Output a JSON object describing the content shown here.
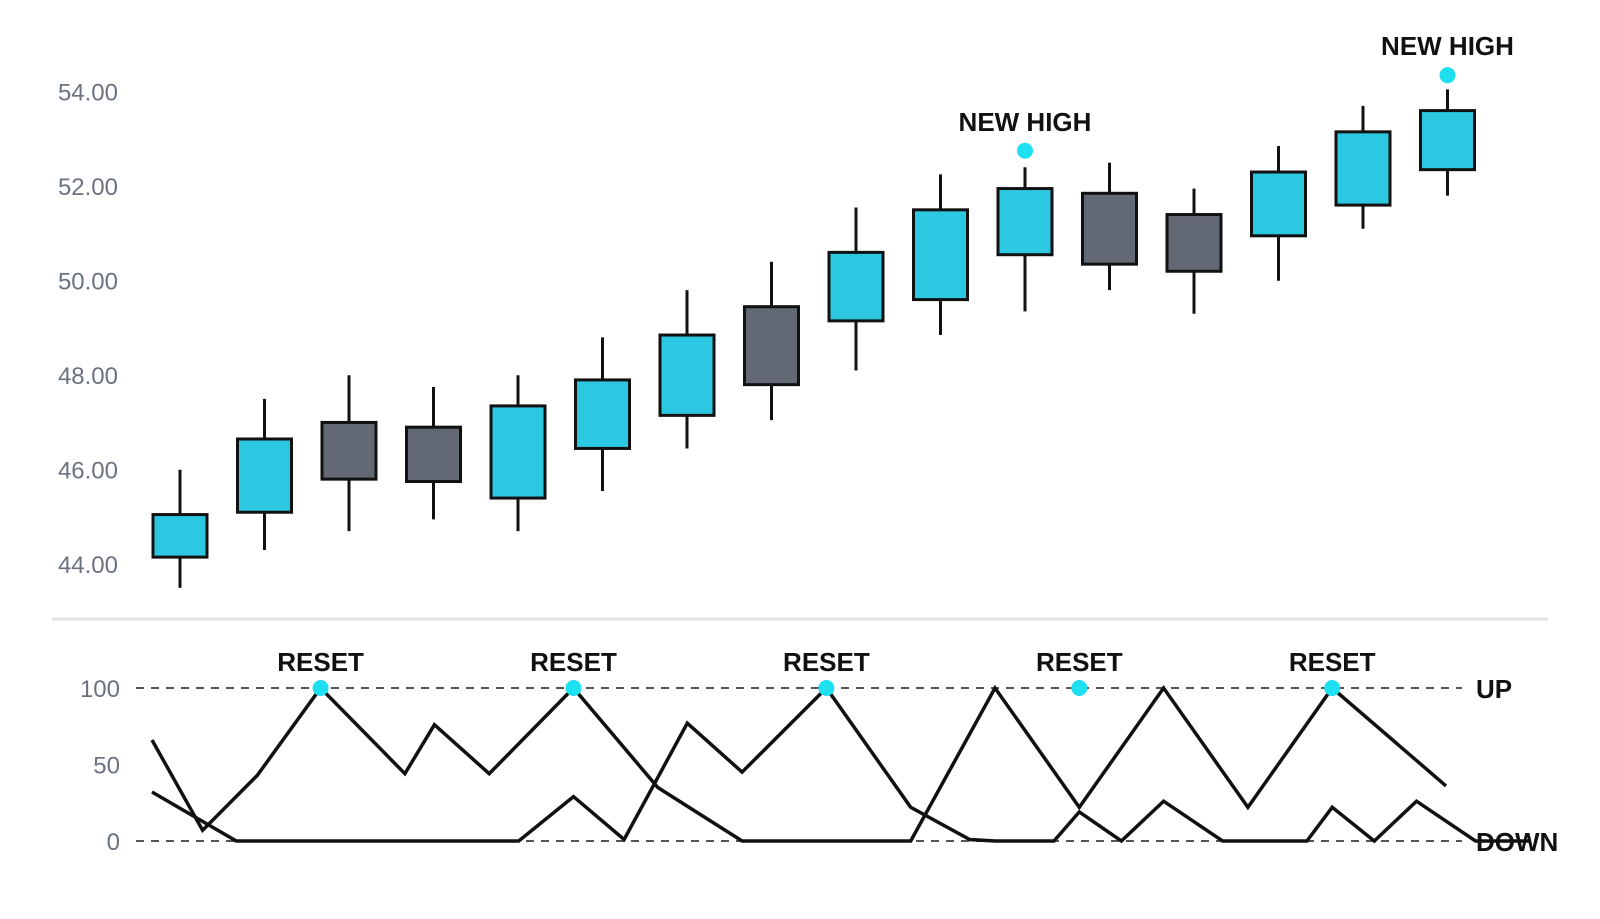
{
  "chart_data": [
    {
      "type": "candlestick",
      "title": "",
      "xlabel": "",
      "ylabel": "",
      "ylim": [
        43.2,
        55.2
      ],
      "y_ticks": [
        "44.00",
        "46.00",
        "48.00",
        "50.00",
        "52.00",
        "54.00"
      ],
      "grid": false,
      "candles": [
        {
          "open": 44.15,
          "high": 46.0,
          "low": 43.5,
          "close": 45.05,
          "direction": "up"
        },
        {
          "open": 45.1,
          "high": 47.5,
          "low": 44.3,
          "close": 46.65,
          "direction": "up"
        },
        {
          "open": 47.0,
          "high": 48.0,
          "low": 44.7,
          "close": 45.8,
          "direction": "down"
        },
        {
          "open": 46.9,
          "high": 47.75,
          "low": 44.95,
          "close": 45.75,
          "direction": "down"
        },
        {
          "open": 45.4,
          "high": 48.0,
          "low": 44.7,
          "close": 47.35,
          "direction": "up"
        },
        {
          "open": 46.45,
          "high": 48.8,
          "low": 45.55,
          "close": 47.9,
          "direction": "up"
        },
        {
          "open": 47.15,
          "high": 49.8,
          "low": 46.45,
          "close": 48.85,
          "direction": "up"
        },
        {
          "open": 49.45,
          "high": 50.4,
          "low": 47.05,
          "close": 47.8,
          "direction": "down"
        },
        {
          "open": 49.15,
          "high": 51.55,
          "low": 48.1,
          "close": 50.6,
          "direction": "up"
        },
        {
          "open": 49.6,
          "high": 52.25,
          "low": 48.85,
          "close": 51.5,
          "direction": "up"
        },
        {
          "open": 50.55,
          "high": 52.4,
          "low": 49.35,
          "close": 51.95,
          "direction": "up"
        },
        {
          "open": 51.85,
          "high": 52.5,
          "low": 49.8,
          "close": 50.35,
          "direction": "down"
        },
        {
          "open": 51.4,
          "high": 51.95,
          "low": 49.3,
          "close": 50.2,
          "direction": "down"
        },
        {
          "open": 50.95,
          "high": 52.85,
          "low": 50.0,
          "close": 52.3,
          "direction": "up"
        },
        {
          "open": 51.6,
          "high": 53.7,
          "low": 51.1,
          "close": 53.15,
          "direction": "up"
        },
        {
          "open": 52.35,
          "high": 54.05,
          "low": 51.8,
          "close": 53.6,
          "direction": "up"
        }
      ],
      "annotations": [
        {
          "candle_index": 10,
          "label": "NEW HIGH",
          "marker_value": 52.75
        },
        {
          "candle_index": 15,
          "label": "NEW HIGH",
          "marker_value": 54.35
        }
      ],
      "colors": {
        "up": "#2cc8e2",
        "down": "#626874",
        "outline": "#111111",
        "marker": "#1ee0f0"
      }
    },
    {
      "type": "line",
      "title": "",
      "xlabel": "",
      "ylabel": "",
      "ylim": [
        0,
        100
      ],
      "y_ticks": [
        "0",
        "50",
        "100"
      ],
      "levels": [
        {
          "value": 100,
          "label": "UP"
        },
        {
          "value": 0,
          "label": "DOWN"
        }
      ],
      "series": [
        {
          "points": [
            [
              0,
              66
            ],
            [
              0.6,
              7
            ],
            [
              1.25,
              43
            ],
            [
              2,
              100
            ],
            [
              3,
              44
            ],
            [
              3.35,
              76
            ],
            [
              4,
              44
            ],
            [
              5,
              100
            ],
            [
              6,
              35
            ],
            [
              7,
              0
            ],
            [
              8,
              0
            ],
            [
              9,
              0
            ],
            [
              10,
              100
            ],
            [
              11,
              22
            ],
            [
              12,
              100
            ],
            [
              13,
              22
            ],
            [
              14,
              100
            ],
            [
              15.35,
              36
            ]
          ]
        },
        {
          "points": [
            [
              0,
              32
            ],
            [
              1,
              0
            ],
            [
              2,
              0
            ],
            [
              3,
              0
            ],
            [
              4.35,
              0
            ],
            [
              5,
              29
            ],
            [
              5.6,
              1
            ],
            [
              6.35,
              77
            ],
            [
              7,
              45
            ],
            [
              8,
              100
            ],
            [
              9,
              22
            ],
            [
              9.7,
              1
            ],
            [
              10,
              0
            ],
            [
              10.7,
              0
            ],
            [
              11,
              19
            ],
            [
              11.5,
              0
            ],
            [
              12,
              26
            ],
            [
              12.7,
              0
            ],
            [
              13.7,
              0
            ],
            [
              14,
              22
            ],
            [
              14.5,
              0
            ],
            [
              15,
              26
            ],
            [
              15.7,
              0
            ],
            [
              16.35,
              0
            ]
          ]
        }
      ],
      "reset_markers": [
        {
          "x": 2,
          "label": "RESET"
        },
        {
          "x": 5,
          "label": "RESET"
        },
        {
          "x": 8,
          "label": "RESET"
        },
        {
          "x": 11,
          "label": "RESET"
        },
        {
          "x": 14,
          "label": "RESET"
        }
      ],
      "colors": {
        "line": "#111111",
        "dashed": "#555555",
        "marker": "#1ee0f0",
        "divider": "#e2e5e8"
      }
    }
  ]
}
